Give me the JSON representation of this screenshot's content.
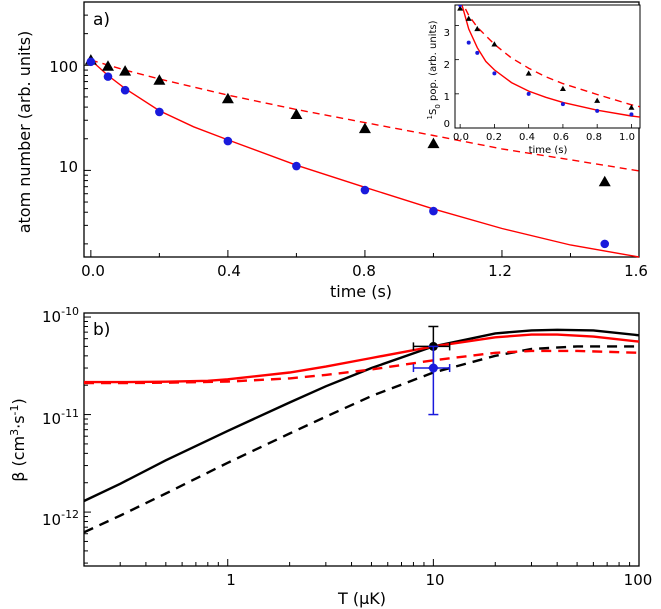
{
  "chart_data": [
    {
      "type": "scatter",
      "panel_label": "a)",
      "xlabel": "time (s)",
      "ylabel": "atom number (arb. units)",
      "xlim": [
        -0.02,
        1.6
      ],
      "ylim": [
        1.5,
        400
      ],
      "yscale": "log",
      "xticks": [
        "0.0",
        "0.4",
        "0.8",
        "1.2",
        "1.6"
      ],
      "yticks": [
        "10",
        "100"
      ],
      "series": [
        {
          "name": "triangles",
          "marker": "triangle",
          "color": "#000000",
          "x": [
            0.0,
            0.05,
            0.1,
            0.2,
            0.4,
            0.6,
            0.8,
            1.0,
            1.5
          ],
          "y": [
            112,
            98,
            88,
            72,
            48,
            34,
            25,
            18,
            7.8
          ]
        },
        {
          "name": "circles",
          "marker": "circle",
          "color": "#1a1adc",
          "x": [
            0.0,
            0.05,
            0.1,
            0.2,
            0.4,
            0.6,
            0.8,
            1.0,
            1.5
          ],
          "y": [
            108,
            78,
            58,
            36,
            19,
            11,
            6.5,
            4.1,
            2.0
          ]
        },
        {
          "name": "fit-dashed",
          "style": "dashed",
          "color": "#ff0000",
          "x": [
            0.0,
            0.1,
            0.2,
            0.4,
            0.6,
            0.8,
            1.0,
            1.2,
            1.4,
            1.6
          ],
          "y": [
            112,
            90,
            74,
            52,
            38,
            28.5,
            21.5,
            16,
            12.6,
            9.9
          ]
        },
        {
          "name": "fit-solid",
          "style": "solid",
          "color": "#ff0000",
          "x": [
            0.0,
            0.05,
            0.1,
            0.2,
            0.3,
            0.4,
            0.6,
            0.8,
            1.0,
            1.2,
            1.4,
            1.6
          ],
          "y": [
            112,
            80,
            60,
            37,
            26,
            19.5,
            11.2,
            6.9,
            4.3,
            2.8,
            1.95,
            1.5
          ]
        }
      ],
      "inset": {
        "xlabel": "time (s)",
        "ylabel": "¹S₀ pop. (arb. units)",
        "ylabel_main": "S",
        "ylabel_pre": "1",
        "ylabel_sub": "0",
        "ylabel_post": " pop. (arb. units)",
        "xlim": [
          -0.03,
          1.05
        ],
        "ylim": [
          0,
          3.6
        ],
        "xticks": [
          "0.0",
          "0.2",
          "0.4",
          "0.6",
          "0.8",
          "1.0"
        ],
        "yticks": [
          "0",
          "1",
          "2",
          "3"
        ],
        "series": [
          {
            "name": "triangles",
            "marker": "triangle",
            "color": "#000000",
            "x": [
              0.0,
              0.05,
              0.1,
              0.2,
              0.4,
              0.6,
              0.8,
              1.0
            ],
            "y": [
              3.5,
              3.2,
              2.9,
              2.45,
              1.6,
              1.15,
              0.8,
              0.6
            ]
          },
          {
            "name": "circles",
            "marker": "circle",
            "color": "#1a1adc",
            "x": [
              0.0,
              0.05,
              0.1,
              0.2,
              0.4,
              0.6,
              0.8,
              1.0
            ],
            "y": [
              3.6,
              2.5,
              2.2,
              1.6,
              1.0,
              0.7,
              0.5,
              0.4
            ]
          },
          {
            "name": "fit-dashed",
            "style": "dashed",
            "color": "#ff0000",
            "x": [
              0.0,
              0.05,
              0.1,
              0.2,
              0.3,
              0.4,
              0.5,
              0.6,
              0.8,
              1.0,
              1.05
            ],
            "y": [
              3.8,
              3.3,
              2.95,
              2.45,
              2.05,
              1.75,
              1.5,
              1.3,
              0.98,
              0.68,
              0.62
            ]
          },
          {
            "name": "fit-solid",
            "style": "solid",
            "color": "#ff0000",
            "x": [
              0.0,
              0.05,
              0.1,
              0.15,
              0.2,
              0.3,
              0.4,
              0.5,
              0.6,
              0.8,
              1.0,
              1.05
            ],
            "y": [
              3.8,
              2.9,
              2.35,
              1.95,
              1.7,
              1.33,
              1.08,
              0.9,
              0.75,
              0.52,
              0.35,
              0.32
            ]
          }
        ]
      }
    },
    {
      "type": "line",
      "panel_label": "b)",
      "xlabel_main": "T (",
      "xlabel_greek": "μ",
      "xlabel_post": "K)",
      "ylabel_beta": "β (cm",
      "ylabel_sup1": "3",
      "ylabel_mid": "·s",
      "ylabel_sup2": "-1",
      "ylabel_end": ")",
      "xscale": "log",
      "yscale": "log",
      "xlim": [
        0.2,
        100
      ],
      "ylim": [
        2.8e-13,
        1.1e-10
      ],
      "xticks": [
        "1",
        "10",
        "100"
      ],
      "ytick_base": "10",
      "ytick_exps": [
        "-12",
        "-11",
        "-10"
      ],
      "series": [
        {
          "name": "black-solid",
          "style": "solid",
          "color": "#000000",
          "x": [
            0.2,
            0.3,
            0.5,
            1,
            2,
            3,
            5,
            10,
            20,
            30,
            40,
            60,
            100
          ],
          "y": [
            1.3e-12,
            1.95e-12,
            3.4e-12,
            6.8e-12,
            1.33e-11,
            1.95e-11,
            3e-11,
            5e-11,
            6.8e-11,
            7.3e-11,
            7.4e-11,
            7.3e-11,
            6.5e-11
          ]
        },
        {
          "name": "black-dashed",
          "style": "dashed",
          "color": "#000000",
          "x": [
            0.2,
            0.3,
            0.5,
            1,
            2,
            3,
            5,
            10,
            20,
            30,
            50,
            100
          ],
          "y": [
            6.2e-13,
            9.2e-13,
            1.55e-12,
            3.2e-12,
            6.4e-12,
            9.5e-12,
            1.55e-11,
            2.7e-11,
            4e-11,
            4.7e-11,
            5e-11,
            5e-11
          ]
        },
        {
          "name": "red-solid",
          "style": "solid",
          "color": "#ff0000",
          "x": [
            0.2,
            0.3,
            0.5,
            0.8,
            1,
            2,
            3,
            5,
            10,
            20,
            30,
            40,
            60,
            100
          ],
          "y": [
            2.15e-11,
            2.15e-11,
            2.17e-11,
            2.22e-11,
            2.3e-11,
            2.7e-11,
            3.1e-11,
            3.8e-11,
            5e-11,
            6.2e-11,
            6.6e-11,
            6.6e-11,
            6.3e-11,
            5.6e-11
          ]
        },
        {
          "name": "red-dashed",
          "style": "dashed",
          "color": "#ff0000",
          "x": [
            0.2,
            0.3,
            0.5,
            1,
            2,
            3,
            5,
            10,
            20,
            30,
            50,
            100
          ],
          "y": [
            2.1e-11,
            2.1e-11,
            2.12e-11,
            2.18e-11,
            2.35e-11,
            2.55e-11,
            2.9e-11,
            3.6e-11,
            4.3e-11,
            4.5e-11,
            4.5e-11,
            4.3e-11
          ]
        }
      ],
      "points": [
        {
          "name": "black-point",
          "color": "#000000",
          "x": 10,
          "y": 5e-11,
          "yerr": [
            3e-11,
            8e-11
          ],
          "xerr": [
            8,
            12
          ]
        },
        {
          "name": "blue-point",
          "color": "#1a1adc",
          "x": 10,
          "y": 3e-11,
          "yerr": [
            1e-11,
            5e-11
          ],
          "xerr": [
            8,
            12
          ]
        }
      ]
    }
  ]
}
